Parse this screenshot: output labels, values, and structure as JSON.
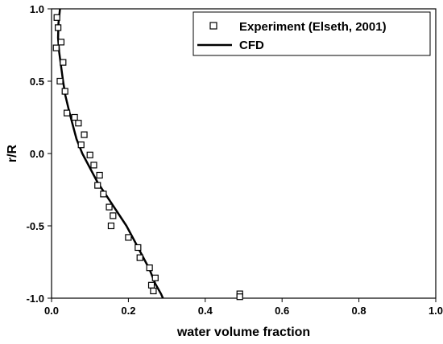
{
  "chart_data": {
    "type": "scatter",
    "xlabel": "water volume fraction",
    "ylabel": "r/R",
    "xlim": [
      0,
      1
    ],
    "ylim": [
      -1,
      1
    ],
    "x_ticks": [
      "0.0",
      "0.2",
      "0.4",
      "0.6",
      "0.8",
      "1.0"
    ],
    "y_ticks": [
      "1.0",
      "0.5",
      "0.0",
      "-0.5",
      "-1.0"
    ],
    "grid": false,
    "legend_position": "top-right",
    "series": [
      {
        "name": "Experiment (Elseth, 2001)",
        "marker": "open-square",
        "color": "#000000",
        "points": [
          [
            0.014,
            0.94
          ],
          [
            0.017,
            0.87
          ],
          [
            0.025,
            0.77
          ],
          [
            0.012,
            0.73
          ],
          [
            0.03,
            0.63
          ],
          [
            0.022,
            0.5
          ],
          [
            0.035,
            0.43
          ],
          [
            0.04,
            0.28
          ],
          [
            0.06,
            0.25
          ],
          [
            0.07,
            0.21
          ],
          [
            0.085,
            0.13
          ],
          [
            0.077,
            0.06
          ],
          [
            0.1,
            -0.01
          ],
          [
            0.11,
            -0.08
          ],
          [
            0.125,
            -0.15
          ],
          [
            0.12,
            -0.22
          ],
          [
            0.135,
            -0.28
          ],
          [
            0.15,
            -0.37
          ],
          [
            0.16,
            -0.43
          ],
          [
            0.155,
            -0.5
          ],
          [
            0.2,
            -0.58
          ],
          [
            0.225,
            -0.65
          ],
          [
            0.23,
            -0.72
          ],
          [
            0.255,
            -0.79
          ],
          [
            0.27,
            -0.86
          ],
          [
            0.26,
            -0.91
          ],
          [
            0.265,
            -0.95
          ],
          [
            0.49,
            -0.97
          ],
          [
            0.49,
            -0.99
          ]
        ]
      },
      {
        "name": "CFD",
        "type": "line",
        "color": "#000000",
        "points": [
          [
            0.022,
            1.0
          ],
          [
            0.018,
            0.9
          ],
          [
            0.017,
            0.8
          ],
          [
            0.02,
            0.7
          ],
          [
            0.025,
            0.6
          ],
          [
            0.03,
            0.5
          ],
          [
            0.036,
            0.4
          ],
          [
            0.045,
            0.3
          ],
          [
            0.055,
            0.2
          ],
          [
            0.065,
            0.1
          ],
          [
            0.08,
            0.0
          ],
          [
            0.1,
            -0.1
          ],
          [
            0.12,
            -0.2
          ],
          [
            0.145,
            -0.3
          ],
          [
            0.17,
            -0.4
          ],
          [
            0.195,
            -0.5
          ],
          [
            0.215,
            -0.6
          ],
          [
            0.235,
            -0.7
          ],
          [
            0.255,
            -0.8
          ],
          [
            0.27,
            -0.9
          ],
          [
            0.285,
            -0.97
          ],
          [
            0.29,
            -1.0
          ]
        ]
      }
    ]
  }
}
